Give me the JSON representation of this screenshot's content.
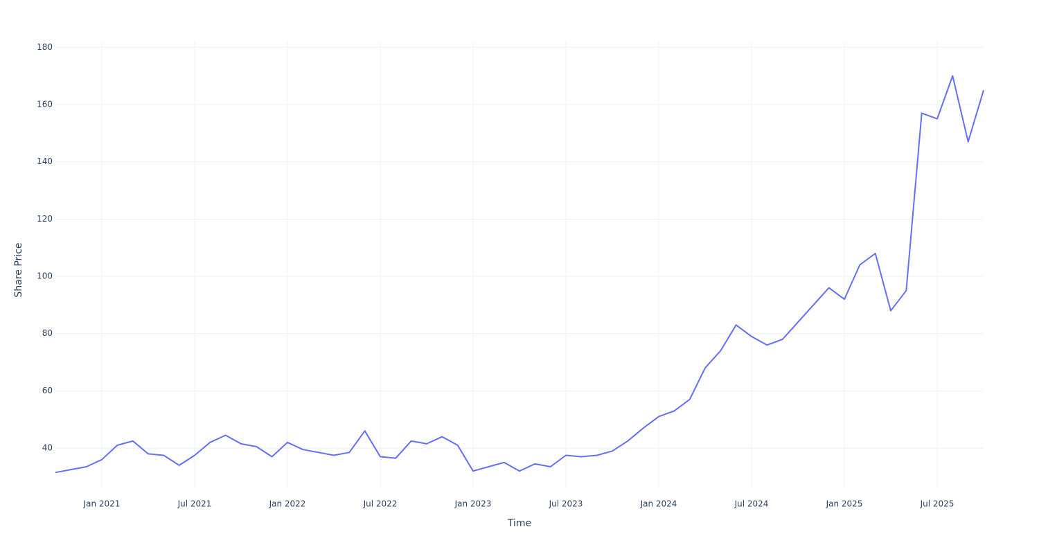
{
  "chart_data": {
    "type": "line",
    "x_label": "Time",
    "y_label": "Share Price",
    "x": [
      "2020-10",
      "2020-11",
      "2020-12",
      "2021-01",
      "2021-02",
      "2021-03",
      "2021-04",
      "2021-05",
      "2021-06",
      "2021-07",
      "2021-08",
      "2021-09",
      "2021-10",
      "2021-11",
      "2021-12",
      "2022-01",
      "2022-02",
      "2022-03",
      "2022-04",
      "2022-05",
      "2022-06",
      "2022-07",
      "2022-08",
      "2022-09",
      "2022-10",
      "2022-11",
      "2022-12",
      "2023-01",
      "2023-02",
      "2023-03",
      "2023-04",
      "2023-05",
      "2023-06",
      "2023-07",
      "2023-08",
      "2023-09",
      "2023-10",
      "2023-11",
      "2023-12",
      "2024-01",
      "2024-02",
      "2024-03",
      "2024-04",
      "2024-05",
      "2024-06",
      "2024-07",
      "2024-08",
      "2024-09",
      "2024-10",
      "2024-11",
      "2024-12",
      "2025-01",
      "2025-02",
      "2025-03",
      "2025-04",
      "2025-05",
      "2025-06",
      "2025-07",
      "2025-08",
      "2025-09",
      "2025-10"
    ],
    "series": [
      {
        "name": "Share Price",
        "color": "#636efa",
        "values": [
          31.5,
          32.5,
          33.5,
          36,
          41,
          42.5,
          38,
          37.5,
          34,
          37.5,
          42,
          44.5,
          41.5,
          40.5,
          37,
          42,
          39.5,
          38.5,
          37.5,
          38.5,
          46,
          37,
          36.5,
          42.5,
          41.5,
          44,
          41,
          32,
          33.5,
          35,
          32,
          34.5,
          33.5,
          37.5,
          37,
          37.5,
          39,
          42.5,
          47,
          51,
          53,
          57,
          68,
          74,
          83,
          79,
          76,
          78,
          84,
          90,
          96,
          92,
          104,
          108,
          88,
          95,
          157,
          155,
          170,
          147,
          165
        ]
      }
    ],
    "xlim": [
      "2020-10",
      "2025-10"
    ],
    "xticks": [
      {
        "value": "2021-01",
        "label": "Jan 2021"
      },
      {
        "value": "2021-07",
        "label": "Jul 2021"
      },
      {
        "value": "2022-01",
        "label": "Jan 2022"
      },
      {
        "value": "2022-07",
        "label": "Jul 2022"
      },
      {
        "value": "2023-01",
        "label": "Jan 2023"
      },
      {
        "value": "2023-07",
        "label": "Jul 2023"
      },
      {
        "value": "2024-01",
        "label": "Jan 2024"
      },
      {
        "value": "2024-07",
        "label": "Jul 2024"
      },
      {
        "value": "2025-01",
        "label": "Jan 2025"
      },
      {
        "value": "2025-07",
        "label": "Jul 2025"
      }
    ],
    "ylim": [
      26,
      182
    ],
    "yticks": [
      40,
      60,
      80,
      100,
      120,
      140,
      160,
      180
    ],
    "grid": true
  }
}
